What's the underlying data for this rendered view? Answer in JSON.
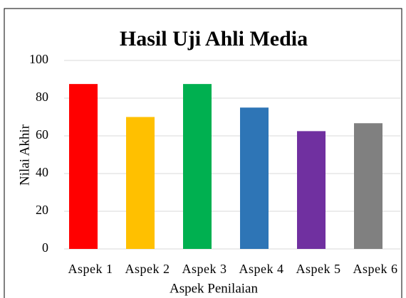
{
  "chart_data": {
    "type": "bar",
    "title": "Hasil Uji Ahli Media",
    "x_label": "Aspek Penilaian",
    "y_label": "Nilai Akhir",
    "categories": [
      "Aspek 1",
      "Aspek 2",
      "Aspek 3",
      "Aspek 4",
      "Aspek 5",
      "Aspek 6"
    ],
    "values": [
      87.5,
      70,
      87.5,
      75,
      62.5,
      66.7
    ],
    "colors": [
      "#ff0000",
      "#ffc000",
      "#00b050",
      "#2e75b6",
      "#7030a0",
      "#808080"
    ],
    "ylim": [
      0,
      100
    ],
    "yticks": [
      0,
      20,
      40,
      60,
      80,
      100
    ],
    "grid": true
  }
}
